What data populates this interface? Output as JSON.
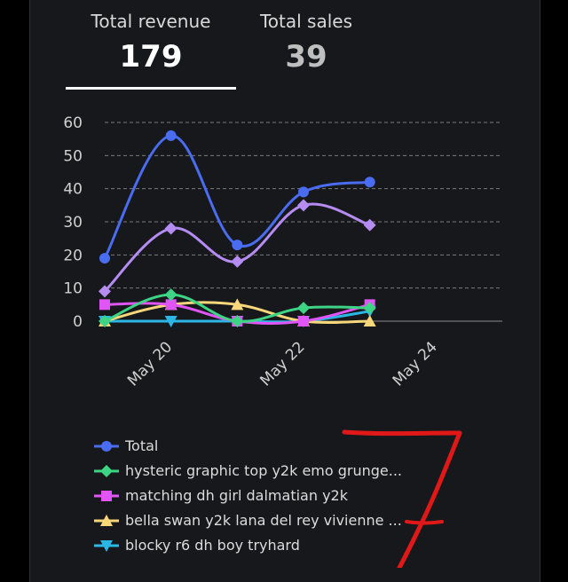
{
  "tabs": [
    {
      "label": "Total revenue",
      "value": "179"
    },
    {
      "label": "Total sales",
      "value": "39"
    }
  ],
  "chart_data": {
    "type": "line",
    "x_dates": [
      "May 19",
      "May 20",
      "May 21",
      "May 22",
      "May 23"
    ],
    "x_tick_labels": [
      "May 20",
      "May 22",
      "May 24"
    ],
    "x_tick_dates": [
      "May 20",
      "May 22",
      "May 24"
    ],
    "xlim": [
      "May 19",
      "May 25"
    ],
    "ylim": [
      0,
      60
    ],
    "y_ticks": [
      0,
      10,
      20,
      30,
      40,
      50,
      60
    ],
    "grid": true,
    "legend_position": "bottom",
    "series": [
      {
        "name": "Total",
        "values": [
          19,
          56,
          23,
          39,
          42
        ],
        "color": "#4a6cf0",
        "marker": "circle"
      },
      {
        "name": "",
        "values": [
          9,
          28,
          18,
          35,
          29
        ],
        "color": "#b48cf2",
        "marker": "diamond"
      },
      {
        "name": "hysteric graphic top y2k emo grunge...",
        "values": [
          0,
          8,
          0,
          4,
          4
        ],
        "color": "#3ed486",
        "marker": "diamond"
      },
      {
        "name": "matching dh girl dalmatian y2k",
        "values": [
          5,
          5,
          0,
          0,
          5
        ],
        "color": "#e055f5",
        "marker": "square"
      },
      {
        "name": "bella swan y2k lana del rey vivienne ...",
        "values": [
          0,
          5,
          5,
          0,
          0
        ],
        "color": "#f7d77a",
        "marker": "triangle"
      },
      {
        "name": "blocky r6 dh boy tryhard",
        "values": [
          0,
          0,
          0,
          0,
          3
        ],
        "color": "#2bb7e6",
        "marker": "triangle-down"
      }
    ]
  },
  "annotation": {
    "text": "7",
    "color": "#e01818"
  }
}
